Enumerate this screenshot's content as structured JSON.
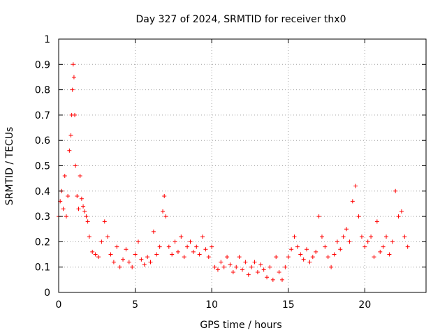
{
  "chart_data": {
    "type": "scatter",
    "title": "Day 327 of 2024, SRMTID for receiver thx0",
    "xlabel": "GPS time / hours",
    "ylabel": "SRMTID / TECUs",
    "xlim": [
      0,
      24
    ],
    "ylim": [
      0,
      1
    ],
    "x_ticks": [
      0,
      5,
      10,
      15,
      20
    ],
    "x_tick_labels": [
      "0",
      "5",
      "10",
      "15",
      "20"
    ],
    "y_ticks": [
      0,
      0.1,
      0.2,
      0.3,
      0.4,
      0.5,
      0.6,
      0.7,
      0.8,
      0.9,
      1
    ],
    "y_tick_labels": [
      "0",
      "0.1",
      "0.2",
      "0.3",
      "0.4",
      "0.5",
      "0.6",
      "0.7",
      "0.8",
      "0.9",
      "1"
    ],
    "grid": true,
    "marker": "plus",
    "color": "#ff0000",
    "series": [
      {
        "name": "SRMTID",
        "x": [
          0.0,
          0.1,
          0.2,
          0.3,
          0.4,
          0.5,
          0.6,
          0.7,
          0.8,
          0.85,
          0.9,
          0.95,
          1.0,
          1.05,
          1.1,
          1.2,
          1.3,
          1.4,
          1.5,
          1.6,
          1.7,
          1.8,
          1.9,
          2.0,
          2.2,
          2.4,
          2.6,
          2.8,
          3.0,
          3.2,
          3.4,
          3.6,
          3.8,
          4.0,
          4.2,
          4.4,
          4.6,
          4.8,
          5.0,
          5.2,
          5.4,
          5.6,
          5.8,
          6.0,
          6.2,
          6.4,
          6.6,
          6.8,
          6.9,
          7.0,
          7.2,
          7.4,
          7.6,
          7.8,
          8.0,
          8.2,
          8.4,
          8.6,
          8.8,
          9.0,
          9.2,
          9.4,
          9.6,
          9.8,
          10.0,
          10.2,
          10.4,
          10.6,
          10.8,
          11.0,
          11.2,
          11.4,
          11.6,
          11.8,
          12.0,
          12.2,
          12.4,
          12.6,
          12.8,
          13.0,
          13.2,
          13.4,
          13.6,
          13.8,
          14.0,
          14.2,
          14.4,
          14.6,
          14.8,
          15.0,
          15.2,
          15.4,
          15.6,
          15.8,
          16.0,
          16.2,
          16.4,
          16.6,
          16.8,
          17.0,
          17.2,
          17.4,
          17.6,
          17.8,
          18.0,
          18.2,
          18.4,
          18.6,
          18.8,
          19.0,
          19.2,
          19.4,
          19.6,
          19.8,
          20.0,
          20.2,
          20.4,
          20.6,
          20.8,
          21.0,
          21.2,
          21.4,
          21.6,
          21.8,
          22.0,
          22.2,
          22.4,
          22.6,
          22.8
        ],
        "y": [
          0.3,
          0.36,
          0.4,
          0.33,
          0.46,
          0.3,
          0.38,
          0.56,
          0.62,
          0.7,
          0.8,
          0.9,
          0.85,
          0.7,
          0.5,
          0.38,
          0.33,
          0.46,
          0.37,
          0.34,
          0.32,
          0.3,
          0.28,
          0.22,
          0.16,
          0.15,
          0.14,
          0.2,
          0.28,
          0.22,
          0.15,
          0.12,
          0.18,
          0.1,
          0.13,
          0.17,
          0.12,
          0.1,
          0.15,
          0.2,
          0.13,
          0.11,
          0.14,
          0.12,
          0.24,
          0.15,
          0.18,
          0.32,
          0.38,
          0.3,
          0.18,
          0.15,
          0.2,
          0.16,
          0.22,
          0.14,
          0.18,
          0.2,
          0.16,
          0.18,
          0.15,
          0.22,
          0.17,
          0.14,
          0.18,
          0.1,
          0.09,
          0.12,
          0.1,
          0.14,
          0.11,
          0.08,
          0.1,
          0.14,
          0.09,
          0.12,
          0.07,
          0.1,
          0.12,
          0.08,
          0.11,
          0.09,
          0.06,
          0.1,
          0.05,
          0.14,
          0.08,
          0.05,
          0.1,
          0.14,
          0.17,
          0.22,
          0.18,
          0.15,
          0.13,
          0.17,
          0.12,
          0.14,
          0.16,
          0.3,
          0.22,
          0.18,
          0.14,
          0.1,
          0.15,
          0.2,
          0.17,
          0.22,
          0.25,
          0.2,
          0.36,
          0.42,
          0.3,
          0.22,
          0.18,
          0.2,
          0.22,
          0.14,
          0.28,
          0.16,
          0.18,
          0.22,
          0.15,
          0.2,
          0.4,
          0.3,
          0.32,
          0.22,
          0.18
        ]
      }
    ]
  }
}
